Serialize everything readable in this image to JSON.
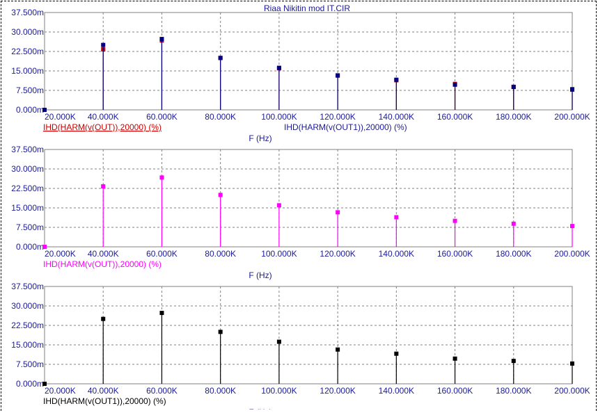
{
  "title": "Riaa Nikitin mod IT.CIR",
  "colors": {
    "axis_text": "#1a1a99",
    "grid": "#808080",
    "navy": "#000080",
    "red": "#cc0000",
    "magenta": "#ff00ff",
    "black": "#000000",
    "background": "#ffffff"
  },
  "chart_data": [
    {
      "type": "bar",
      "subtype": "stem",
      "xlabel": "F (Hz)",
      "x_tick_labels": [
        "20.000K",
        "40.000K",
        "60.000K",
        "80.000K",
        "100.000K",
        "120.000K",
        "140.000K",
        "160.000K",
        "180.000K",
        "200.000K"
      ],
      "y_tick_labels": [
        "0.000m",
        "7.500m",
        "15.000m",
        "22.500m",
        "30.000m",
        "37.500m"
      ],
      "xlim": [
        20000,
        200000
      ],
      "ylim": [
        0,
        0.0375
      ],
      "grid": true,
      "series": [
        {
          "name": "IHD(HARM(v(OUT)),20000) (%)",
          "color": "#cc0000",
          "x": [
            20000,
            40000,
            60000,
            80000,
            100000,
            120000,
            140000,
            160000,
            180000,
            200000
          ],
          "y": [
            0,
            0.0233,
            0.0267,
            0.02,
            0.016,
            0.0133,
            0.0114,
            0.01,
            0.0089,
            0.008
          ]
        },
        {
          "name": "IHD(HARM(v(OUT1)),20000) (%)",
          "color": "#000080",
          "x": [
            20000,
            40000,
            60000,
            80000,
            100000,
            120000,
            140000,
            160000,
            180000,
            200000
          ],
          "y": [
            0,
            0.025,
            0.0273,
            0.02,
            0.0162,
            0.0132,
            0.0116,
            0.0097,
            0.0088,
            0.0078
          ]
        }
      ]
    },
    {
      "type": "bar",
      "subtype": "stem",
      "xlabel": "F (Hz)",
      "x_tick_labels": [
        "20.000K",
        "40.000K",
        "60.000K",
        "80.000K",
        "100.000K",
        "120.000K",
        "140.000K",
        "160.000K",
        "180.000K",
        "200.000K"
      ],
      "y_tick_labels": [
        "0.000m",
        "7.500m",
        "15.000m",
        "22.500m",
        "30.000m",
        "37.500m"
      ],
      "xlim": [
        20000,
        200000
      ],
      "ylim": [
        0,
        0.0375
      ],
      "grid": true,
      "series": [
        {
          "name": "IHD(HARM(v(OUT)),20000) (%)",
          "color": "#ff00ff",
          "x": [
            20000,
            40000,
            60000,
            80000,
            100000,
            120000,
            140000,
            160000,
            180000,
            200000
          ],
          "y": [
            0,
            0.0233,
            0.0267,
            0.02,
            0.016,
            0.0133,
            0.0114,
            0.01,
            0.0089,
            0.008
          ]
        }
      ]
    },
    {
      "type": "bar",
      "subtype": "stem",
      "xlabel": "F (Hz)",
      "x_tick_labels": [
        "20.000K",
        "40.000K",
        "60.000K",
        "80.000K",
        "100.000K",
        "120.000K",
        "140.000K",
        "160.000K",
        "180.000K",
        "200.000K"
      ],
      "y_tick_labels": [
        "0.000m",
        "7.500m",
        "15.000m",
        "22.500m",
        "30.000m",
        "37.500m"
      ],
      "xlim": [
        20000,
        200000
      ],
      "ylim": [
        0,
        0.0375
      ],
      "grid": true,
      "series": [
        {
          "name": "IHD(HARM(v(OUT1)),20000) (%)",
          "color": "#000000",
          "x": [
            20000,
            40000,
            60000,
            80000,
            100000,
            120000,
            140000,
            160000,
            180000,
            200000
          ],
          "y": [
            0,
            0.025,
            0.0273,
            0.02,
            0.0162,
            0.0132,
            0.0116,
            0.0097,
            0.0088,
            0.0078
          ]
        }
      ]
    }
  ]
}
